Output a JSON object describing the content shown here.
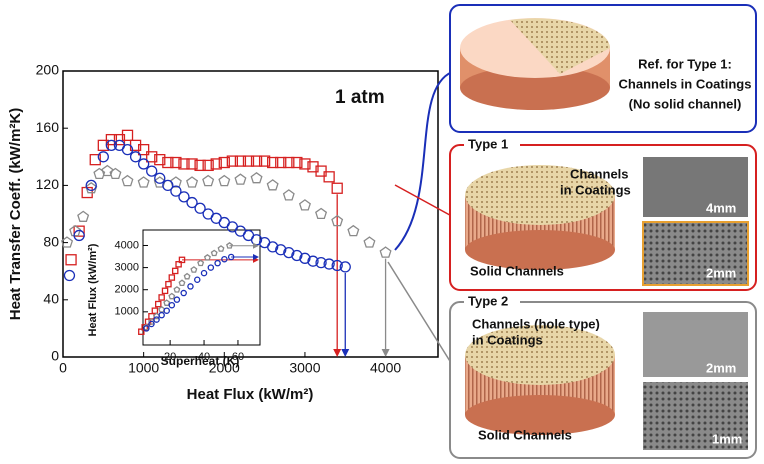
{
  "chart_data": [
    {
      "type": "scatter",
      "annotation": "1 atm",
      "xlabel": "Heat Flux (kW/m²)",
      "ylabel": "Heat Transfer Coeff. (kW/m²K)",
      "xlim": [
        0,
        4650
      ],
      "ylim": [
        0,
        200
      ],
      "xticks": [
        0,
        1000,
        2000,
        3000,
        4000
      ],
      "yticks": [
        0,
        40,
        80,
        120,
        160,
        200
      ],
      "series": [
        {
          "color": "#d62020",
          "marker": "square",
          "x": [
            100,
            200,
            300,
            400,
            500,
            600,
            700,
            800,
            900,
            1000,
            1100,
            1200,
            1300,
            1400,
            1500,
            1600,
            1700,
            1800,
            1900,
            2000,
            2100,
            2200,
            2300,
            2400,
            2500,
            2600,
            2700,
            2800,
            2900,
            3000,
            3100,
            3200,
            3300,
            3400
          ],
          "values": [
            68,
            88,
            115,
            138,
            148,
            152,
            152,
            155,
            148,
            145,
            140,
            138,
            136,
            136,
            135,
            135,
            134,
            134,
            135,
            136,
            137,
            137,
            137,
            137,
            137,
            136,
            136,
            136,
            136,
            135,
            133,
            130,
            126,
            118
          ]
        },
        {
          "color": "#8a8a8a",
          "marker": "pentagon",
          "x": [
            50,
            150,
            250,
            350,
            450,
            550,
            650,
            800,
            1000,
            1200,
            1400,
            1600,
            1800,
            2000,
            2200,
            2400,
            2600,
            2800,
            3000,
            3200,
            3400,
            3600,
            3800,
            4000
          ],
          "values": [
            80,
            88,
            98,
            118,
            128,
            130,
            128,
            123,
            122,
            122,
            122,
            122,
            123,
            123,
            124,
            125,
            120,
            113,
            106,
            100,
            95,
            88,
            80,
            73
          ]
        },
        {
          "color": "#1a2fb8",
          "marker": "circle",
          "x": [
            80,
            200,
            350,
            500,
            600,
            700,
            800,
            900,
            1000,
            1100,
            1200,
            1300,
            1400,
            1500,
            1600,
            1700,
            1800,
            1900,
            2000,
            2100,
            2200,
            2300,
            2400,
            2500,
            2600,
            2700,
            2800,
            2900,
            3000,
            3100,
            3200,
            3300,
            3400,
            3500
          ],
          "values": [
            57,
            85,
            120,
            140,
            148,
            148,
            145,
            140,
            135,
            130,
            125,
            120,
            116,
            112,
            108,
            104,
            100,
            97,
            94,
            91,
            88,
            85,
            82,
            80,
            77,
            75,
            73,
            71,
            69,
            67,
            66,
            65,
            64,
            63
          ]
        }
      ]
    },
    {
      "type": "scatter",
      "xlabel": "Superheat (K)",
      "ylabel": "Heat Flux (kW/m²)",
      "xlim": [
        4,
        73
      ],
      "ylim": [
        -500,
        4700
      ],
      "xticks": [
        20,
        40,
        60
      ],
      "yticks": [
        1000,
        2000,
        3000,
        4000
      ],
      "series": [
        {
          "color": "#d62020",
          "marker": "square",
          "x": [
            3,
            5,
            7,
            9,
            11,
            13,
            15,
            17,
            19,
            21,
            23,
            25,
            27
          ],
          "values": [
            100,
            300,
            550,
            800,
            1050,
            1350,
            1650,
            1950,
            2250,
            2550,
            2850,
            3150,
            3350
          ]
        },
        {
          "color": "#8a8a8a",
          "marker": "pentagon",
          "x": [
            6,
            9,
            12,
            15,
            18,
            21,
            24,
            27,
            30,
            34,
            38,
            42,
            46,
            50,
            55
          ],
          "values": [
            300,
            550,
            800,
            1100,
            1400,
            1700,
            2000,
            2300,
            2600,
            2900,
            3200,
            3450,
            3650,
            3850,
            3990
          ]
        },
        {
          "color": "#1a2fb8",
          "marker": "circle",
          "x": [
            6,
            9,
            12,
            15,
            18,
            21,
            24,
            28,
            32,
            36,
            40,
            44,
            48,
            52,
            56
          ],
          "values": [
            250,
            450,
            650,
            850,
            1050,
            1300,
            1550,
            1850,
            2150,
            2450,
            2750,
            3000,
            3200,
            3380,
            3480
          ]
        }
      ]
    }
  ],
  "panels": [
    {
      "lines": [
        "Ref. for Type 1:",
        "Channels in Coatings",
        "(No solid channel)"
      ]
    },
    {
      "title": "Type 1",
      "coating": [
        "Channels",
        "in Coatings"
      ],
      "solid": "Solid Channels",
      "scales": [
        "4mm",
        "2mm"
      ]
    },
    {
      "title": "Type 2",
      "coating": [
        "Channels (hole type)",
        "in Coatings"
      ],
      "solid": "Solid Channels",
      "scales": [
        "2mm",
        "1mm"
      ]
    }
  ]
}
